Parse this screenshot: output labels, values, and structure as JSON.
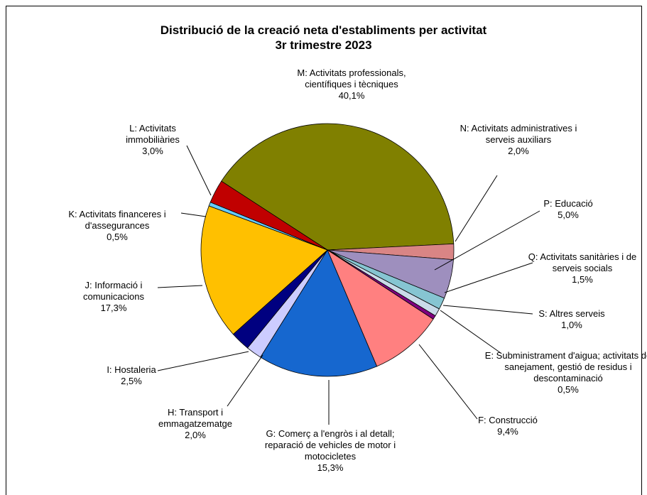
{
  "chart_data": {
    "type": "pie",
    "title": "Distribució de la creació neta d'establiments per activitat",
    "subtitle": "3r trimestre 2023",
    "categories": [
      "M: Activitats professionals, científiques i tècniques",
      "N: Activitats administratives i serveis auxiliars",
      "P: Educació",
      "Q: Activitats sanitàries i de serveis socials",
      "S: Altres serveis",
      "E: Subministrament d'aigua; activitats de sanejament, gestió de residus i descontaminació",
      "F: Construcció",
      "G: Comerç a l'engròs i al detall; reparació de vehicles de motor i motocicletes",
      "H: Transport i emmagatzematge",
      "I: Hostaleria",
      "J: Informació i comunicacions",
      "K: Activitats financeres i d'assegurances",
      "L: Activitats immobiliàries"
    ],
    "values": [
      40.1,
      2.0,
      5.0,
      1.5,
      1.0,
      0.5,
      9.4,
      15.3,
      2.0,
      2.5,
      17.3,
      0.5,
      3.0
    ],
    "value_labels": [
      "40,1%",
      "2,0%",
      "5,0%",
      "1,5%",
      "1,0%",
      "0,5%",
      "9,4%",
      "15,3%",
      "2,0%",
      "2,5%",
      "17,3%",
      "0,5%",
      "3,0%"
    ],
    "colors": [
      "#808000",
      "#d98585",
      "#9e8fbe",
      "#86c5d2",
      "#cadbe9",
      "#800080",
      "#ff8080",
      "#1667cf",
      "#ccccff",
      "#000080",
      "#ffc000",
      "#66ccff",
      "#c00000"
    ]
  }
}
